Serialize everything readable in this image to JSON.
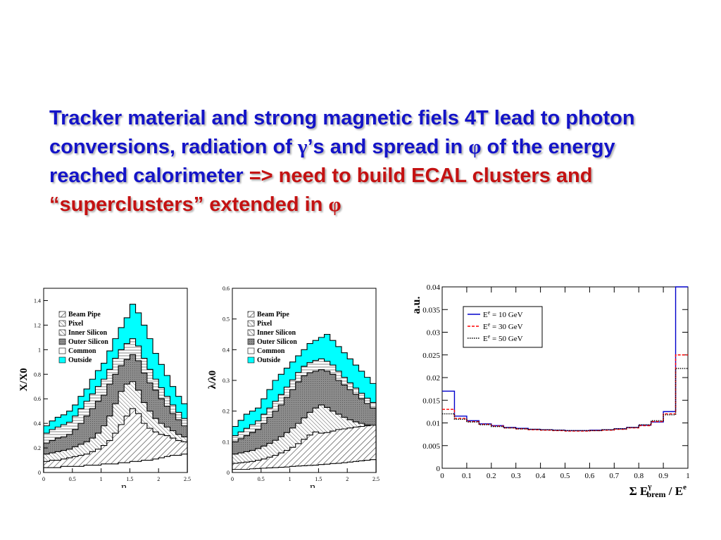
{
  "headline": {
    "part1": "Tracker material and strong magnetic fiels 4T lead to photon conversions, radiation of ",
    "gamma": "γ",
    "part2": "’s and spread in ",
    "phi": "φ",
    "part3": " of the energy reached calorimeter ",
    "red_part": "=> need to build ECAL clusters and “superclusters” extended in ",
    "red_phi": "φ"
  },
  "colors": {
    "headline_blue": "#1414c8",
    "headline_red": "#c41212",
    "outside_cyan": "#00ffff",
    "series1": "#0000cc",
    "series2": "#ff0000",
    "series3": "#000000"
  },
  "chart_data": [
    {
      "type": "area",
      "ylabel": "X/X0",
      "xlabel": "η",
      "xlim": [
        0,
        2.5
      ],
      "ylim": [
        0,
        1.5
      ],
      "x_ticks": [
        "0",
        "0.5",
        "1",
        "1.5",
        "2",
        "2.5"
      ],
      "y_ticks": [
        "0",
        "0.2",
        "0.4",
        "0.6",
        "0.8",
        "1",
        "1.2",
        "1.4"
      ],
      "legend": [
        "Beam Pipe",
        "Pixel",
        "Inner Silicon",
        "Outer Silicon",
        "Common",
        "Outside"
      ],
      "legend_position": "upper-left",
      "x": [
        0.05,
        0.15,
        0.25,
        0.35,
        0.45,
        0.55,
        0.65,
        0.75,
        0.85,
        0.95,
        1.05,
        1.15,
        1.25,
        1.35,
        1.45,
        1.55,
        1.65,
        1.75,
        1.85,
        1.95,
        2.05,
        2.15,
        2.25,
        2.35,
        2.45
      ],
      "series": [
        {
          "name": "Beam Pipe",
          "values": [
            0.04,
            0.04,
            0.04,
            0.05,
            0.05,
            0.05,
            0.05,
            0.06,
            0.06,
            0.06,
            0.07,
            0.07,
            0.07,
            0.08,
            0.08,
            0.09,
            0.09,
            0.1,
            0.1,
            0.11,
            0.12,
            0.13,
            0.14,
            0.14,
            0.15
          ]
        },
        {
          "name": "Pixel",
          "values": [
            0.09,
            0.1,
            0.1,
            0.11,
            0.12,
            0.13,
            0.14,
            0.15,
            0.17,
            0.19,
            0.22,
            0.26,
            0.32,
            0.39,
            0.46,
            0.52,
            0.48,
            0.4,
            0.36,
            0.33,
            0.31,
            0.3,
            0.28,
            0.26,
            0.25
          ]
        },
        {
          "name": "Inner Silicon",
          "values": [
            0.15,
            0.16,
            0.17,
            0.18,
            0.19,
            0.21,
            0.23,
            0.25,
            0.28,
            0.32,
            0.38,
            0.46,
            0.56,
            0.66,
            0.72,
            0.74,
            0.67,
            0.57,
            0.5,
            0.44,
            0.4,
            0.37,
            0.34,
            0.31,
            0.29
          ]
        },
        {
          "name": "Outer Silicon",
          "values": [
            0.24,
            0.26,
            0.28,
            0.29,
            0.31,
            0.35,
            0.4,
            0.46,
            0.52,
            0.58,
            0.63,
            0.72,
            0.8,
            0.87,
            0.92,
            0.96,
            0.91,
            0.81,
            0.73,
            0.67,
            0.6,
            0.54,
            0.48,
            0.43,
            0.38
          ]
        },
        {
          "name": "Common",
          "values": [
            0.32,
            0.35,
            0.37,
            0.39,
            0.41,
            0.46,
            0.52,
            0.58,
            0.64,
            0.7,
            0.76,
            0.84,
            0.93,
            1.0,
            1.05,
            1.09,
            1.03,
            0.93,
            0.84,
            0.76,
            0.69,
            0.62,
            0.55,
            0.49,
            0.44
          ]
        },
        {
          "name": "Outside",
          "values": [
            0.38,
            0.42,
            0.45,
            0.47,
            0.5,
            0.55,
            0.62,
            0.68,
            0.76,
            0.83,
            0.89,
            0.99,
            1.09,
            1.18,
            1.26,
            1.37,
            1.3,
            1.2,
            1.09,
            0.97,
            0.88,
            0.79,
            0.7,
            0.62,
            0.56
          ]
        }
      ]
    },
    {
      "type": "area",
      "ylabel": "λ/λ0",
      "xlabel": "η",
      "xlim": [
        0,
        2.5
      ],
      "ylim": [
        0,
        0.6
      ],
      "x_ticks": [
        "0",
        "0.5",
        "1",
        "1.5",
        "2",
        "2.5"
      ],
      "y_ticks": [
        "0",
        "0.1",
        "0.2",
        "0.3",
        "0.4",
        "0.5",
        "0.6"
      ],
      "legend": [
        "Beam Pipe",
        "Pixel",
        "Inner Silicon",
        "Outer Silicon",
        "Common",
        "Outside"
      ],
      "legend_position": "upper-left",
      "x": [
        0.05,
        0.15,
        0.25,
        0.35,
        0.45,
        0.55,
        0.65,
        0.75,
        0.85,
        0.95,
        1.05,
        1.15,
        1.25,
        1.35,
        1.45,
        1.55,
        1.65,
        1.75,
        1.85,
        1.95,
        2.05,
        2.15,
        2.25,
        2.35,
        2.45
      ],
      "series": [
        {
          "name": "Beam Pipe",
          "values": [
            0.01,
            0.01,
            0.01,
            0.012,
            0.013,
            0.014,
            0.015,
            0.016,
            0.017,
            0.018,
            0.02,
            0.021,
            0.022,
            0.023,
            0.024,
            0.026,
            0.027,
            0.029,
            0.03,
            0.032,
            0.034,
            0.036,
            0.038,
            0.04,
            0.042
          ]
        },
        {
          "name": "Pixel",
          "values": [
            0.03,
            0.032,
            0.034,
            0.036,
            0.04,
            0.044,
            0.05,
            0.056,
            0.064,
            0.072,
            0.082,
            0.094,
            0.108,
            0.122,
            0.132,
            0.128,
            0.13,
            0.135,
            0.14,
            0.142,
            0.145,
            0.148,
            0.15,
            0.152,
            0.154
          ]
        },
        {
          "name": "Inner Silicon",
          "values": [
            0.06,
            0.064,
            0.068,
            0.072,
            0.078,
            0.086,
            0.095,
            0.105,
            0.117,
            0.13,
            0.145,
            0.16,
            0.178,
            0.196,
            0.21,
            0.22,
            0.212,
            0.2,
            0.19,
            0.18,
            0.172,
            0.165,
            0.16,
            0.155,
            0.15
          ]
        },
        {
          "name": "Outer Silicon",
          "values": [
            0.1,
            0.11,
            0.12,
            0.13,
            0.14,
            0.16,
            0.18,
            0.2,
            0.22,
            0.245,
            0.27,
            0.295,
            0.315,
            0.325,
            0.33,
            0.335,
            0.33,
            0.32,
            0.3,
            0.285,
            0.27,
            0.255,
            0.24,
            0.225,
            0.21
          ]
        },
        {
          "name": "Common",
          "values": [
            0.12,
            0.132,
            0.144,
            0.156,
            0.168,
            0.19,
            0.21,
            0.232,
            0.254,
            0.278,
            0.302,
            0.326,
            0.346,
            0.358,
            0.365,
            0.37,
            0.362,
            0.35,
            0.33,
            0.31,
            0.292,
            0.275,
            0.258,
            0.242,
            0.228
          ]
        },
        {
          "name": "Outside",
          "values": [
            0.15,
            0.17,
            0.19,
            0.2,
            0.21,
            0.24,
            0.27,
            0.3,
            0.32,
            0.34,
            0.36,
            0.38,
            0.4,
            0.42,
            0.43,
            0.44,
            0.45,
            0.43,
            0.41,
            0.39,
            0.37,
            0.35,
            0.33,
            0.31,
            0.29
          ]
        }
      ]
    },
    {
      "type": "line",
      "ylabel": "a.u.",
      "xlabel": "Σ E_brem^γ / E^e",
      "xlim": [
        0,
        1
      ],
      "ylim": [
        0,
        0.04
      ],
      "x_ticks": [
        "0",
        "0.1",
        "0.2",
        "0.3",
        "0.4",
        "0.5",
        "0.6",
        "0.7",
        "0.8",
        "0.9",
        "1"
      ],
      "y_ticks": [
        "0",
        "0.005",
        "0.01",
        "0.015",
        "0.02",
        "0.025",
        "0.03",
        "0.035",
        "0.04"
      ],
      "legend_position": "top-left",
      "x": [
        0.025,
        0.075,
        0.125,
        0.175,
        0.225,
        0.275,
        0.325,
        0.375,
        0.425,
        0.475,
        0.525,
        0.575,
        0.625,
        0.675,
        0.725,
        0.775,
        0.825,
        0.875,
        0.925,
        0.975
      ],
      "series": [
        {
          "name": "E<sup>e</sup> = 10 GeV",
          "label_main": "E",
          "label_sup": "e",
          "label_rest": " = 10 GeV",
          "values": [
            0.017,
            0.0115,
            0.0105,
            0.0098,
            0.0094,
            0.009,
            0.0088,
            0.0086,
            0.0085,
            0.0084,
            0.0083,
            0.0083,
            0.0084,
            0.0085,
            0.0087,
            0.009,
            0.0095,
            0.0102,
            0.0125,
            0.04
          ]
        },
        {
          "name": "E<sup>e</sup> = 30 GeV",
          "label_main": "E",
          "label_sup": "e",
          "label_rest": " = 30 GeV",
          "values": [
            0.013,
            0.011,
            0.0103,
            0.0097,
            0.0093,
            0.0089,
            0.0087,
            0.0085,
            0.0084,
            0.0083,
            0.0082,
            0.0082,
            0.0083,
            0.0084,
            0.0086,
            0.0089,
            0.0094,
            0.0103,
            0.012,
            0.025
          ]
        },
        {
          "name": "E<sup>e</sup> = 50 GeV",
          "label_main": "E",
          "label_sup": "e",
          "label_rest": " = 50 GeV",
          "values": [
            0.012,
            0.0108,
            0.0102,
            0.0096,
            0.0092,
            0.0089,
            0.0087,
            0.0086,
            0.0085,
            0.0084,
            0.0083,
            0.0083,
            0.0083,
            0.0085,
            0.0087,
            0.009,
            0.0096,
            0.0105,
            0.0118,
            0.022
          ]
        }
      ]
    }
  ]
}
